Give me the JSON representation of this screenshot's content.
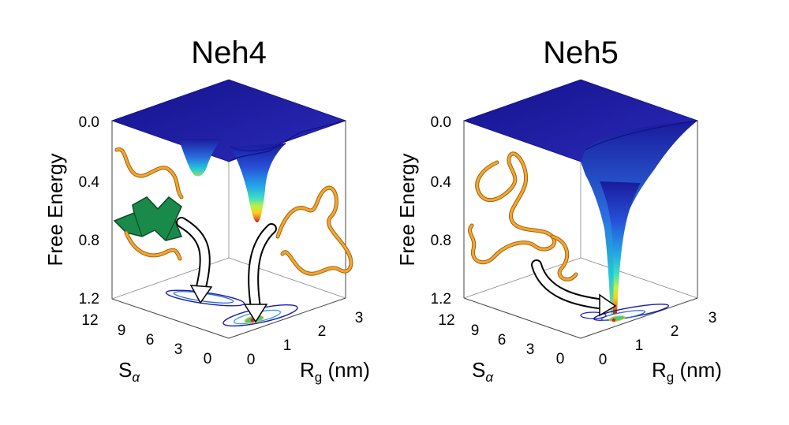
{
  "chart_data": [
    {
      "type": "surface3d",
      "title": "Neh4",
      "zlabel": "Free Energy",
      "xlabel_main": "S",
      "xlabel_sub": "α",
      "ylabel_main": "R",
      "ylabel_sub": "g",
      "ylabel_unit": " (nm)",
      "z_ticks": [
        "0.0",
        "0.4",
        "0.8",
        "1.2"
      ],
      "x_ticks": [
        "12",
        "9",
        "6",
        "3",
        "0"
      ],
      "y_ticks": [
        "0",
        "1",
        "2",
        "3"
      ],
      "zlim": [
        0,
        1.2
      ],
      "xlim": [
        12,
        0
      ],
      "ylim": [
        0,
        3
      ],
      "minima": [
        {
          "s_alpha": 7,
          "rg": 0.8,
          "free_energy": 0.35
        },
        {
          "s_alpha": 1,
          "rg": 0.9,
          "free_energy": 0.7
        }
      ]
    },
    {
      "type": "surface3d",
      "title": "Neh5",
      "zlabel": "Free Energy",
      "xlabel_main": "S",
      "xlabel_sub": "α",
      "ylabel_main": "R",
      "ylabel_sub": "g",
      "ylabel_unit": " (nm)",
      "z_ticks": [
        "0.0",
        "0.4",
        "0.8",
        "1.2"
      ],
      "x_ticks": [
        "12",
        "9",
        "6",
        "3",
        "0"
      ],
      "y_ticks": [
        "0",
        "1",
        "2",
        "3"
      ],
      "zlim": [
        0,
        1.2
      ],
      "xlim": [
        12,
        0
      ],
      "ylim": [
        0,
        3
      ],
      "minima": [
        {
          "s_alpha": 0.5,
          "rg": 0.9,
          "free_energy": 1.15
        }
      ]
    }
  ],
  "colors": {
    "surface_dark": "#1c1aa0",
    "surface_blue": "#2433c8",
    "helix": "#1a8a4a",
    "coil": "#e8a020"
  }
}
